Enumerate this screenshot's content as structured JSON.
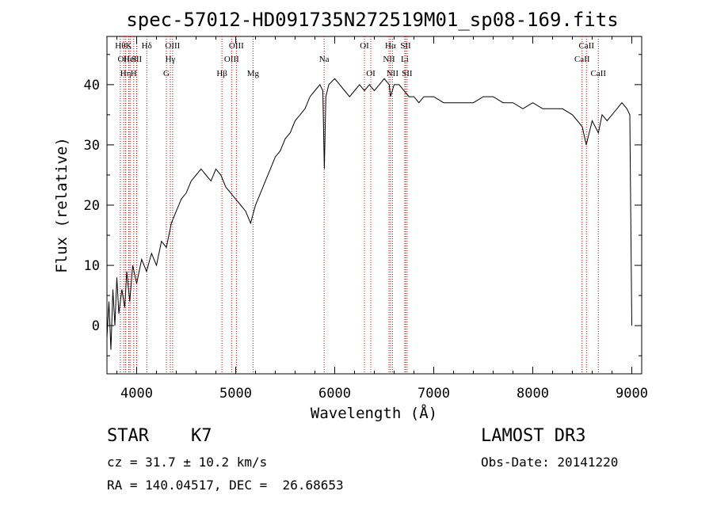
{
  "chart_data": {
    "type": "line",
    "title": "spec-57012-HD091735N272519M01_sp08-169.fits",
    "xlabel": "Wavelength (Å)",
    "ylabel": "Flux (relative)",
    "xlim": [
      3700,
      9100
    ],
    "ylim": [
      -8,
      48
    ],
    "xticks": [
      4000,
      5000,
      6000,
      7000,
      8000,
      9000
    ],
    "xtick_labels": [
      "4000",
      "5000",
      "6000",
      "7000",
      "8000",
      "9000"
    ],
    "yticks": [
      0,
      10,
      20,
      30,
      40
    ],
    "ytick_labels": [
      "0",
      "10",
      "20",
      "30",
      "40"
    ],
    "line_color": "#000000",
    "marker_color": "#c00000",
    "series": [
      {
        "x": [
          3700,
          3720,
          3740,
          3760,
          3780,
          3800,
          3820,
          3850,
          3880,
          3900,
          3930,
          3960,
          4000,
          4050,
          4100,
          4150,
          4200,
          4250,
          4300,
          4350,
          4400,
          4450,
          4500,
          4550,
          4600,
          4650,
          4700,
          4750,
          4800,
          4850,
          4900,
          4950,
          5000,
          5050,
          5100,
          5150,
          5200,
          5250,
          5300,
          5350,
          5400,
          5450,
          5500,
          5550,
          5600,
          5650,
          5700,
          5750,
          5800,
          5850,
          5880,
          5895,
          5910,
          5940,
          6000,
          6050,
          6100,
          6150,
          6200,
          6250,
          6300,
          6350,
          6400,
          6450,
          6500,
          6550,
          6563,
          6600,
          6650,
          6700,
          6750,
          6800,
          6850,
          6900,
          6950,
          7000,
          7100,
          7200,
          7300,
          7400,
          7500,
          7600,
          7700,
          7800,
          7900,
          8000,
          8100,
          8200,
          8300,
          8400,
          8450,
          8500,
          8540,
          8600,
          8662,
          8700,
          8750,
          8800,
          8850,
          8900,
          8950,
          8980,
          9000
        ],
        "y": [
          -2,
          4,
          -4,
          6,
          0,
          8,
          2,
          6,
          3,
          9,
          4,
          10,
          7,
          11,
          9,
          12,
          10,
          14,
          13,
          17,
          19,
          21,
          22,
          24,
          25,
          26,
          25,
          24,
          26,
          25,
          23,
          22,
          21,
          20,
          19,
          17,
          20,
          22,
          24,
          26,
          28,
          29,
          31,
          32,
          34,
          35,
          36,
          38,
          39,
          40,
          39,
          26,
          38,
          40,
          41,
          40,
          39,
          38,
          39,
          40,
          39,
          40,
          39,
          40,
          41,
          40,
          38,
          40,
          40,
          39,
          38,
          38,
          37,
          38,
          38,
          38,
          37,
          37,
          37,
          37,
          38,
          38,
          37,
          37,
          36,
          37,
          36,
          36,
          36,
          35,
          34,
          33,
          30,
          34,
          32,
          35,
          34,
          35,
          36,
          37,
          36,
          35,
          0
        ]
      }
    ],
    "line_markers": [
      {
        "x": 3835,
        "label": "Hθ",
        "row": 0
      },
      {
        "x": 3869,
        "label": "OII",
        "row": 1
      },
      {
        "x": 3889,
        "label": "Hη",
        "row": 2
      },
      {
        "x": 3920,
        "label": "K",
        "row": 0
      },
      {
        "x": 3934,
        "label": "HeI",
        "row": 1
      },
      {
        "x": 3970,
        "label": "H",
        "row": 2
      },
      {
        "x": 4000,
        "label": "SII",
        "row": 1
      },
      {
        "x": 4102,
        "label": "Hδ",
        "row": 0
      },
      {
        "x": 4300,
        "label": "G",
        "row": 2
      },
      {
        "x": 4340,
        "label": "Hγ",
        "row": 1
      },
      {
        "x": 4363,
        "label": "OIII",
        "row": 0
      },
      {
        "x": 4861,
        "label": "Hβ",
        "row": 2
      },
      {
        "x": 4959,
        "label": "OIII",
        "row": 1
      },
      {
        "x": 5007,
        "label": "OIII",
        "row": 0
      },
      {
        "x": 5175,
        "label": "Mg",
        "row": 2
      },
      {
        "x": 5893,
        "label": "Na",
        "row": 1
      },
      {
        "x": 6300,
        "label": "OI",
        "row": 0
      },
      {
        "x": 6364,
        "label": "OI",
        "row": 2
      },
      {
        "x": 6548,
        "label": "NII",
        "row": 1
      },
      {
        "x": 6563,
        "label": "Hα",
        "row": 0
      },
      {
        "x": 6583,
        "label": "NII",
        "row": 2
      },
      {
        "x": 6707,
        "label": "Li",
        "row": 1
      },
      {
        "x": 6716,
        "label": "SII",
        "row": 0
      },
      {
        "x": 6731,
        "label": "SII",
        "row": 2
      },
      {
        "x": 8498,
        "label": "CaII",
        "row": 1
      },
      {
        "x": 8542,
        "label": "CaII",
        "row": 0
      },
      {
        "x": 8662,
        "label": "CaII",
        "row": 2
      }
    ]
  },
  "info": {
    "class_line": "STAR    K7",
    "survey": "LAMOST DR3",
    "cz_line": "cz = 31.7 ± 10.2 km/s",
    "obs_date": "Obs-Date: 20141220",
    "radec_line": "RA = 140.04517, DEC =  26.68653"
  }
}
